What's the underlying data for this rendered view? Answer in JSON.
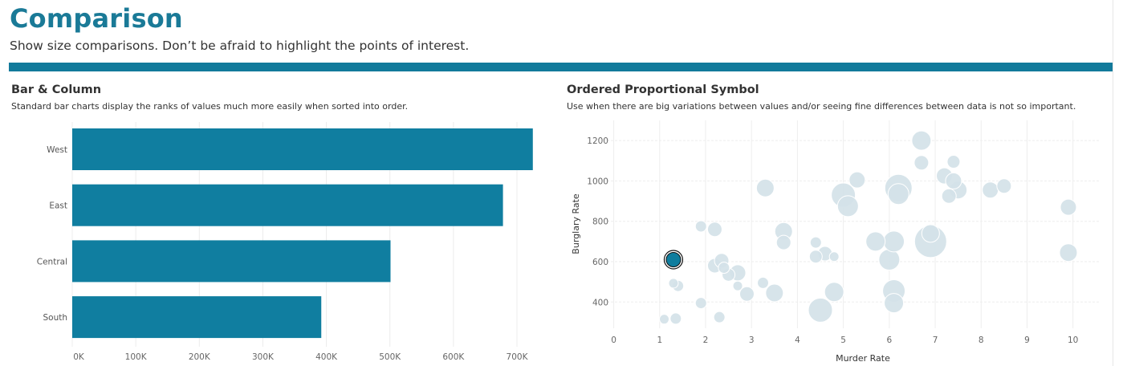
{
  "header": {
    "title": "Comparison",
    "subtitle": "Show size comparisons. Don’t be afraid to highlight the points of interest."
  },
  "colors": {
    "accent": "#127a9b",
    "bar": "#107ea0",
    "bubble": "#d4e2e8",
    "highlight": "#0f7d9e"
  },
  "bar_panel": {
    "title": "Bar & Column",
    "description": "Standard bar charts display the ranks of values much more easily when sorted into order."
  },
  "bubble_panel": {
    "title": "Ordered Proportional Symbol",
    "description": "Use when there are big variations between values and/or seeing fine differences between data is not so important."
  },
  "chart_data": [
    {
      "type": "bar",
      "orientation": "horizontal",
      "categories": [
        "West",
        "East",
        "Central",
        "South"
      ],
      "values": [
        725000,
        678000,
        501000,
        392000
      ],
      "xlabel": "",
      "ylabel": "",
      "xlim": [
        0,
        750000
      ],
      "x_ticks": [
        0,
        100000,
        200000,
        300000,
        400000,
        500000,
        600000,
        700000
      ],
      "x_tick_labels": [
        "0K",
        "100K",
        "200K",
        "300K",
        "400K",
        "500K",
        "600K",
        "700K"
      ],
      "grid": "vertical"
    },
    {
      "type": "scatter",
      "variant": "bubble",
      "xlabel": "Murder Rate",
      "ylabel": "Burglary Rate",
      "xlim": [
        -0.15,
        10.6
      ],
      "ylim": [
        270,
        1300
      ],
      "x_ticks": [
        0,
        1,
        2,
        3,
        4,
        5,
        6,
        7,
        8,
        9,
        10
      ],
      "y_ticks": [
        400,
        600,
        800,
        1000,
        1200
      ],
      "grid": "both",
      "highlighted_point": {
        "x": 1.3,
        "y": 610,
        "size": 9
      },
      "points": [
        {
          "x": 1.3,
          "y": 610,
          "size": 9
        },
        {
          "x": 1.1,
          "y": 315,
          "size": 6
        },
        {
          "x": 1.35,
          "y": 318,
          "size": 7
        },
        {
          "x": 1.3,
          "y": 493,
          "size": 6
        },
        {
          "x": 1.4,
          "y": 480,
          "size": 7
        },
        {
          "x": 1.9,
          "y": 775,
          "size": 7
        },
        {
          "x": 2.2,
          "y": 760,
          "size": 9
        },
        {
          "x": 1.9,
          "y": 395,
          "size": 7
        },
        {
          "x": 2.3,
          "y": 325,
          "size": 7
        },
        {
          "x": 2.2,
          "y": 580,
          "size": 9
        },
        {
          "x": 2.35,
          "y": 605,
          "size": 9
        },
        {
          "x": 2.4,
          "y": 570,
          "size": 7
        },
        {
          "x": 2.5,
          "y": 535,
          "size": 8
        },
        {
          "x": 2.7,
          "y": 545,
          "size": 10
        },
        {
          "x": 2.7,
          "y": 480,
          "size": 6
        },
        {
          "x": 2.9,
          "y": 440,
          "size": 9
        },
        {
          "x": 3.25,
          "y": 495,
          "size": 7
        },
        {
          "x": 3.3,
          "y": 965,
          "size": 11
        },
        {
          "x": 3.5,
          "y": 445,
          "size": 11
        },
        {
          "x": 3.7,
          "y": 750,
          "size": 11
        },
        {
          "x": 3.7,
          "y": 695,
          "size": 9
        },
        {
          "x": 4.4,
          "y": 695,
          "size": 7
        },
        {
          "x": 4.4,
          "y": 625,
          "size": 8
        },
        {
          "x": 4.6,
          "y": 640,
          "size": 9
        },
        {
          "x": 4.8,
          "y": 625,
          "size": 6
        },
        {
          "x": 4.5,
          "y": 360,
          "size": 15
        },
        {
          "x": 4.8,
          "y": 450,
          "size": 12
        },
        {
          "x": 5.0,
          "y": 930,
          "size": 15
        },
        {
          "x": 5.1,
          "y": 875,
          "size": 13
        },
        {
          "x": 5.3,
          "y": 1005,
          "size": 10
        },
        {
          "x": 5.7,
          "y": 700,
          "size": 12
        },
        {
          "x": 6.0,
          "y": 610,
          "size": 13
        },
        {
          "x": 6.1,
          "y": 700,
          "size": 13
        },
        {
          "x": 6.1,
          "y": 455,
          "size": 14
        },
        {
          "x": 6.1,
          "y": 395,
          "size": 12
        },
        {
          "x": 6.2,
          "y": 965,
          "size": 17
        },
        {
          "x": 6.2,
          "y": 935,
          "size": 13
        },
        {
          "x": 6.7,
          "y": 1200,
          "size": 12
        },
        {
          "x": 6.7,
          "y": 1090,
          "size": 9
        },
        {
          "x": 6.9,
          "y": 700,
          "size": 20
        },
        {
          "x": 6.9,
          "y": 740,
          "size": 11
        },
        {
          "x": 7.2,
          "y": 1025,
          "size": 10
        },
        {
          "x": 7.3,
          "y": 925,
          "size": 9
        },
        {
          "x": 7.4,
          "y": 1095,
          "size": 8
        },
        {
          "x": 7.4,
          "y": 1000,
          "size": 10
        },
        {
          "x": 7.5,
          "y": 955,
          "size": 11
        },
        {
          "x": 8.2,
          "y": 955,
          "size": 10
        },
        {
          "x": 8.5,
          "y": 975,
          "size": 9
        },
        {
          "x": 9.9,
          "y": 870,
          "size": 10
        },
        {
          "x": 9.9,
          "y": 645,
          "size": 11
        }
      ]
    }
  ]
}
